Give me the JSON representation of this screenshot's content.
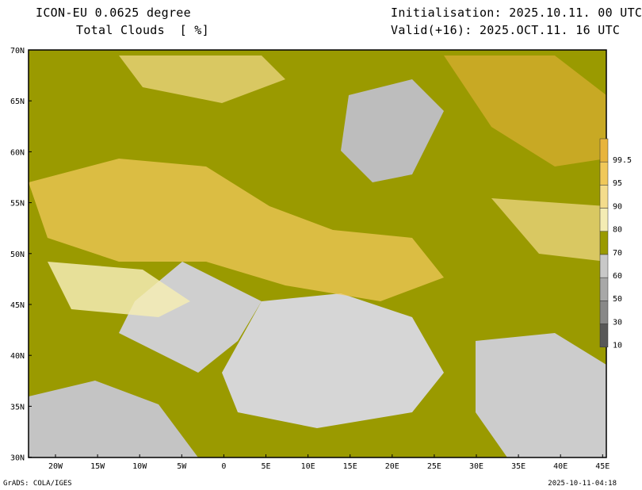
{
  "header": {
    "model": "ICON-EU 0.0625 degree",
    "variable": "Total Clouds  [ %]",
    "init": "Initialisation: 2025.10.11. 00 UTC",
    "valid": "Valid(+16): 2025.OCT.11. 16 UTC"
  },
  "map": {
    "lat_labels": [
      "70N",
      "65N",
      "60N",
      "55N",
      "50N",
      "45N",
      "40N",
      "35N",
      "30N"
    ],
    "lon_labels": [
      "20W",
      "15W",
      "10W",
      "5W",
      "0",
      "5E",
      "10E",
      "15E",
      "20E",
      "25E",
      "30E",
      "35E",
      "40E",
      "45E"
    ]
  },
  "colorbar": {
    "levels": [
      "99.5",
      "95",
      "90",
      "80",
      "70",
      "60",
      "50",
      "30",
      "10"
    ],
    "colors": [
      "#e8b43c",
      "#f0c85a",
      "#f4dc8c",
      "#f4ecb4",
      "#9a9a00",
      "#c8c8c8",
      "#a8a8a8",
      "#888888",
      "#585858"
    ]
  },
  "footer": {
    "left": "GrADS: COLA/IGES",
    "right": "2025-10-11-04:18"
  }
}
